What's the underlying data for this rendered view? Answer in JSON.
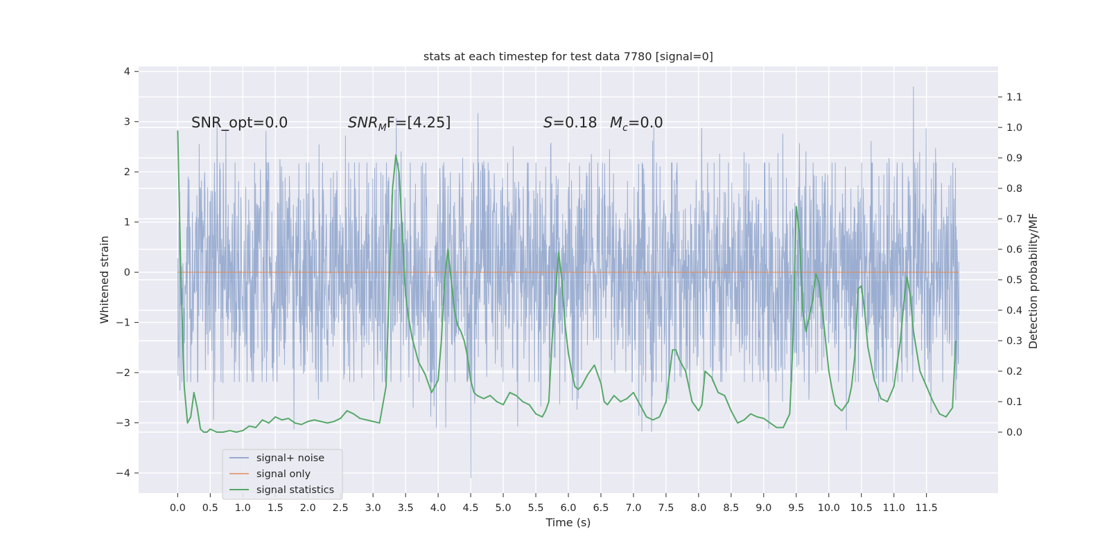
{
  "chart_data": {
    "type": "line",
    "title": "stats at each timestep for test data 7780 [signal=0]",
    "xlabel": "Time (s)",
    "ylabel_left": "Whitened strain",
    "ylabel_right": "Detection probability/MF",
    "xlim": [
      -0.6,
      12.6
    ],
    "ylim_left": [
      -4.4,
      4.1
    ],
    "ylim_right": [
      -0.2,
      1.2
    ],
    "xticks": [
      0.0,
      0.5,
      1.0,
      1.5,
      2.0,
      2.5,
      3.0,
      3.5,
      4.0,
      4.5,
      5.0,
      5.5,
      6.0,
      6.5,
      7.0,
      7.5,
      8.0,
      8.5,
      9.0,
      9.5,
      10.0,
      10.5,
      11.0,
      11.5
    ],
    "xtick_labels": [
      "0.0",
      "0.5",
      "1.0",
      "1.5",
      "2.0",
      "2.5",
      "3.0",
      "3.5",
      "4.0",
      "4.5",
      "5.0",
      "5.5",
      "6.0",
      "6.5",
      "7.0",
      "7.5",
      "8.0",
      "8.5",
      "9.0",
      "9.5",
      "10.0",
      "10.5",
      "11.0",
      "11.5"
    ],
    "yticks_left": [
      -4,
      -3,
      -2,
      -1,
      0,
      1,
      2,
      3,
      4
    ],
    "ytick_labels_left": [
      "−4",
      "−3",
      "−2",
      "−1",
      "0",
      "1",
      "2",
      "3",
      "4"
    ],
    "yticks_right": [
      0.0,
      0.1,
      0.2,
      0.3,
      0.4,
      0.5,
      0.6,
      0.7,
      0.8,
      0.9,
      1.0,
      1.1
    ],
    "ytick_labels_right": [
      "0.0",
      "0.1",
      "0.2",
      "0.3",
      "0.4",
      "0.5",
      "0.6",
      "0.7",
      "0.8",
      "0.9",
      "1.0",
      "1.1"
    ],
    "grid": true,
    "legend_position": "lower-left",
    "annotations": {
      "snr_opt": "SNR_opt=0.0",
      "snr_mf_a": "SNR",
      "snr_mf_sub": "M",
      "snr_mf_b": "F=[4.25]",
      "s_var": "S",
      "s_val": "=0.18",
      "mc_var": "M",
      "mc_sub": "c",
      "mc_val": "=0.0"
    },
    "series": [
      {
        "name": "signal+ noise",
        "color": "#4c72b0",
        "axis": "left",
        "note": "whitened noise trace, roughly uniform envelope between about -2.2 and +2.3 with spikes reaching about 3.7 (near 11.3 s) and -4.1 (near 4.5 s)",
        "t_range": [
          0.0,
          12.0
        ]
      },
      {
        "name": "signal only",
        "color": "#dd8452",
        "axis": "left",
        "x": [
          0.0,
          12.0
        ],
        "y": [
          0.0,
          0.0
        ]
      },
      {
        "name": "signal statistics",
        "color": "#55a868",
        "axis": "right",
        "x": [
          0.0,
          0.05,
          0.1,
          0.15,
          0.2,
          0.25,
          0.3,
          0.35,
          0.4,
          0.45,
          0.5,
          0.6,
          0.7,
          0.8,
          0.9,
          1.0,
          1.1,
          1.2,
          1.3,
          1.4,
          1.5,
          1.6,
          1.7,
          1.8,
          1.9,
          2.0,
          2.1,
          2.2,
          2.3,
          2.4,
          2.5,
          2.6,
          2.7,
          2.8,
          2.9,
          3.0,
          3.1,
          3.2,
          3.25,
          3.3,
          3.35,
          3.4,
          3.45,
          3.5,
          3.55,
          3.6,
          3.7,
          3.8,
          3.9,
          4.0,
          4.05,
          4.1,
          4.15,
          4.2,
          4.25,
          4.3,
          4.35,
          4.4,
          4.45,
          4.5,
          4.55,
          4.6,
          4.7,
          4.8,
          4.9,
          5.0,
          5.1,
          5.2,
          5.3,
          5.4,
          5.5,
          5.6,
          5.65,
          5.7,
          5.75,
          5.8,
          5.85,
          5.9,
          5.95,
          6.0,
          6.05,
          6.1,
          6.15,
          6.2,
          6.3,
          6.4,
          6.5,
          6.55,
          6.6,
          6.7,
          6.8,
          6.9,
          7.0,
          7.1,
          7.2,
          7.3,
          7.4,
          7.5,
          7.6,
          7.65,
          7.7,
          7.75,
          7.8,
          7.9,
          8.0,
          8.05,
          8.1,
          8.2,
          8.3,
          8.4,
          8.5,
          8.6,
          8.7,
          8.8,
          8.9,
          9.0,
          9.1,
          9.2,
          9.3,
          9.4,
          9.45,
          9.5,
          9.55,
          9.6,
          9.65,
          9.7,
          9.75,
          9.8,
          9.85,
          9.9,
          9.95,
          10.0,
          10.05,
          10.1,
          10.2,
          10.3,
          10.35,
          10.4,
          10.45,
          10.5,
          10.55,
          10.6,
          10.7,
          10.8,
          10.9,
          11.0,
          11.1,
          11.15,
          11.2,
          11.25,
          11.3,
          11.4,
          11.5,
          11.6,
          11.7,
          11.8,
          11.9,
          11.95
        ],
        "y": [
          0.99,
          0.5,
          0.15,
          0.03,
          0.05,
          0.13,
          0.08,
          0.01,
          0.0,
          0.0,
          0.01,
          0.0,
          0.0,
          0.005,
          0.0,
          0.005,
          0.02,
          0.015,
          0.04,
          0.03,
          0.05,
          0.04,
          0.045,
          0.03,
          0.025,
          0.035,
          0.04,
          0.035,
          0.03,
          0.035,
          0.045,
          0.07,
          0.06,
          0.045,
          0.04,
          0.035,
          0.03,
          0.15,
          0.5,
          0.8,
          0.91,
          0.85,
          0.65,
          0.45,
          0.37,
          0.31,
          0.23,
          0.19,
          0.13,
          0.17,
          0.3,
          0.5,
          0.6,
          0.5,
          0.4,
          0.35,
          0.33,
          0.3,
          0.25,
          0.17,
          0.13,
          0.12,
          0.11,
          0.12,
          0.1,
          0.09,
          0.13,
          0.12,
          0.1,
          0.09,
          0.06,
          0.05,
          0.07,
          0.1,
          0.3,
          0.45,
          0.59,
          0.5,
          0.35,
          0.26,
          0.2,
          0.15,
          0.14,
          0.15,
          0.19,
          0.22,
          0.16,
          0.1,
          0.09,
          0.12,
          0.1,
          0.11,
          0.13,
          0.09,
          0.05,
          0.04,
          0.05,
          0.1,
          0.27,
          0.27,
          0.24,
          0.22,
          0.2,
          0.1,
          0.07,
          0.09,
          0.2,
          0.18,
          0.13,
          0.12,
          0.07,
          0.03,
          0.04,
          0.06,
          0.05,
          0.045,
          0.03,
          0.015,
          0.015,
          0.06,
          0.3,
          0.74,
          0.65,
          0.4,
          0.33,
          0.38,
          0.43,
          0.52,
          0.49,
          0.4,
          0.3,
          0.2,
          0.14,
          0.09,
          0.07,
          0.1,
          0.15,
          0.25,
          0.47,
          0.48,
          0.4,
          0.28,
          0.17,
          0.11,
          0.1,
          0.15,
          0.3,
          0.42,
          0.51,
          0.45,
          0.33,
          0.2,
          0.15,
          0.1,
          0.06,
          0.05,
          0.08,
          0.3
        ]
      }
    ]
  }
}
